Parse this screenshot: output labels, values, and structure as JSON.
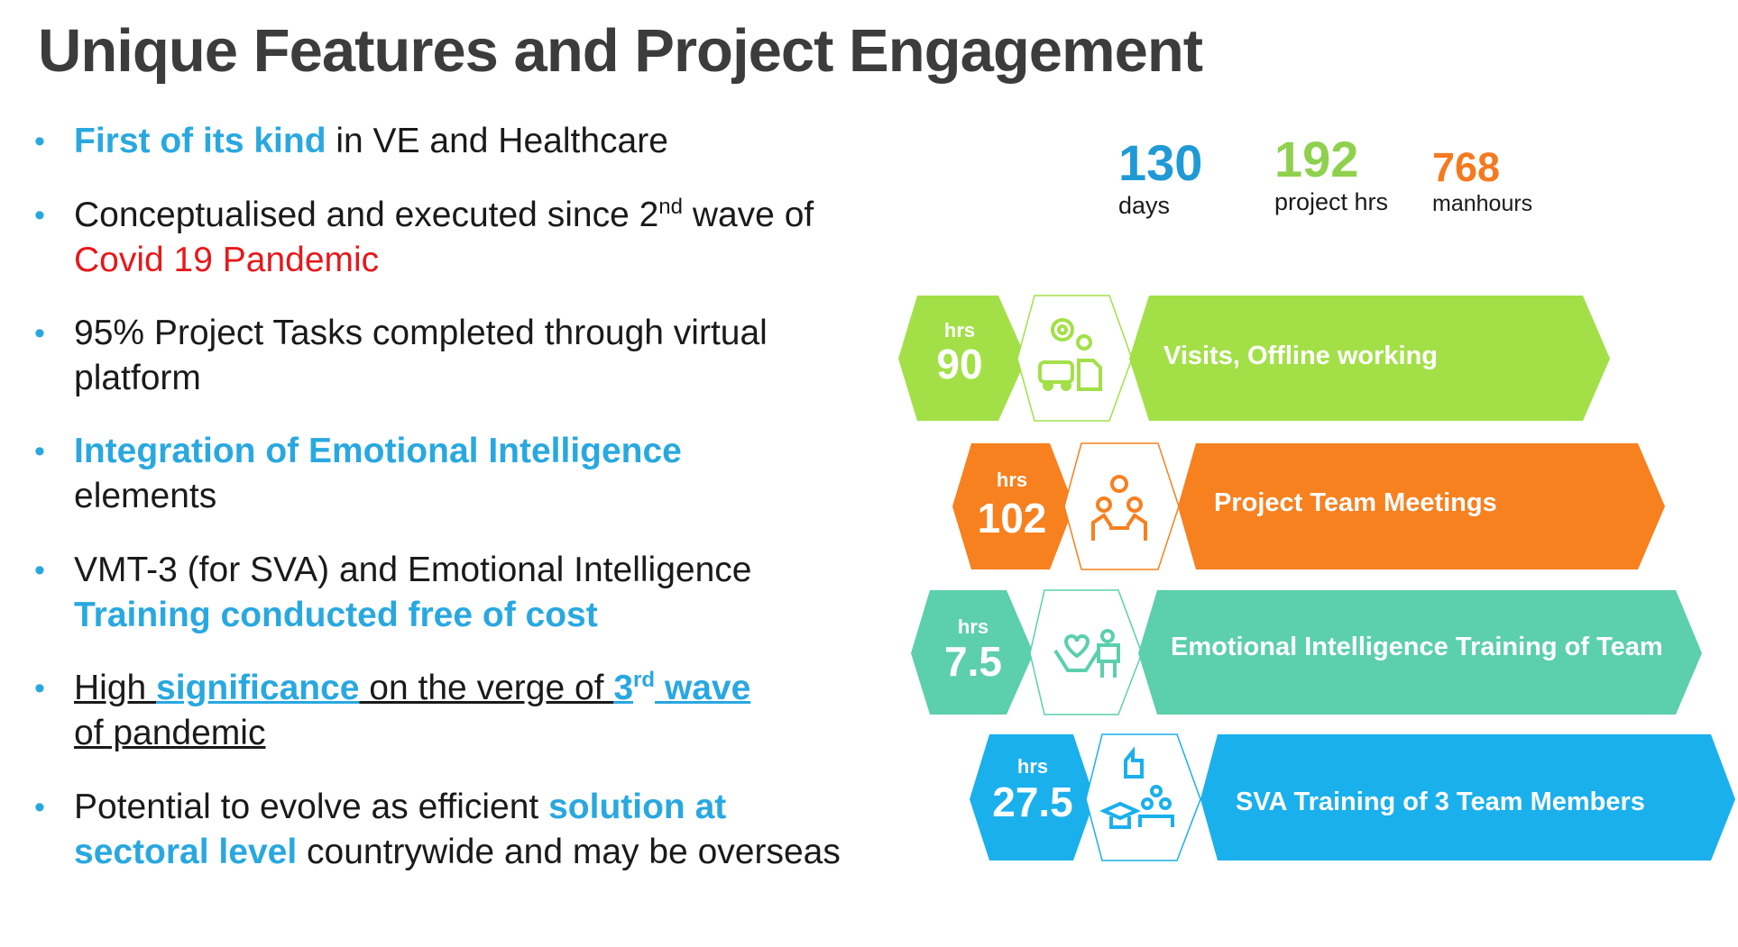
{
  "title": "Unique Features and Project Engagement",
  "bullets": {
    "b1": {
      "highlight": "First of its kind",
      "rest": " in VE and Healthcare"
    },
    "b2": {
      "pre": "Conceptualised and executed since 2",
      "sup": "nd",
      "mid": " wave of ",
      "red": "Covid 19 Pandemic"
    },
    "b3": {
      "text": "95% Project Tasks completed through virtual platform"
    },
    "b4": {
      "highlight": "Integration of Emotional Intelligence",
      "rest": "elements"
    },
    "b5": {
      "pre": "VMT-3 (for SVA) and Emotional Intelligence ",
      "highlight": "Training conducted free of cost"
    },
    "b6": {
      "t1": "High ",
      "h1": "significance",
      "t2": " on the verge of ",
      "h2": "3",
      "sup": "rd",
      "h3": " wave",
      "t3": "of pandemic"
    },
    "b7": {
      "pre": "Potential to evolve as efficient ",
      "highlight": "solution at sectoral level",
      "rest": " countrywide and may be overseas"
    }
  },
  "stats": [
    {
      "value": "130",
      "label": "days",
      "color": "#1f9ad6"
    },
    {
      "value": "192",
      "label": "project hrs",
      "color": "#8fd14f"
    },
    {
      "value": "768",
      "label": "manhours",
      "color": "#f47a20"
    }
  ],
  "bands": [
    {
      "unit": "hrs",
      "value": "90",
      "label": "Visits, Offline working",
      "color": "#a3e048",
      "icon": "gears-car-document-icon"
    },
    {
      "unit": "hrs",
      "value": "102",
      "label": "Project Team Meetings",
      "color": "#f7801f",
      "icon": "team-meeting-idea-icon"
    },
    {
      "unit": "hrs",
      "value": "7.5",
      "label": "Emotional Intelligence Training of Team",
      "color": "#5ccfac",
      "icon": "heart-hands-teacher-icon"
    },
    {
      "unit": "hrs",
      "value": "27.5",
      "label": "SVA Training of 3 Team Members",
      "color": "#1ab0ec",
      "icon": "thumbs-up-graduate-group-icon"
    }
  ]
}
